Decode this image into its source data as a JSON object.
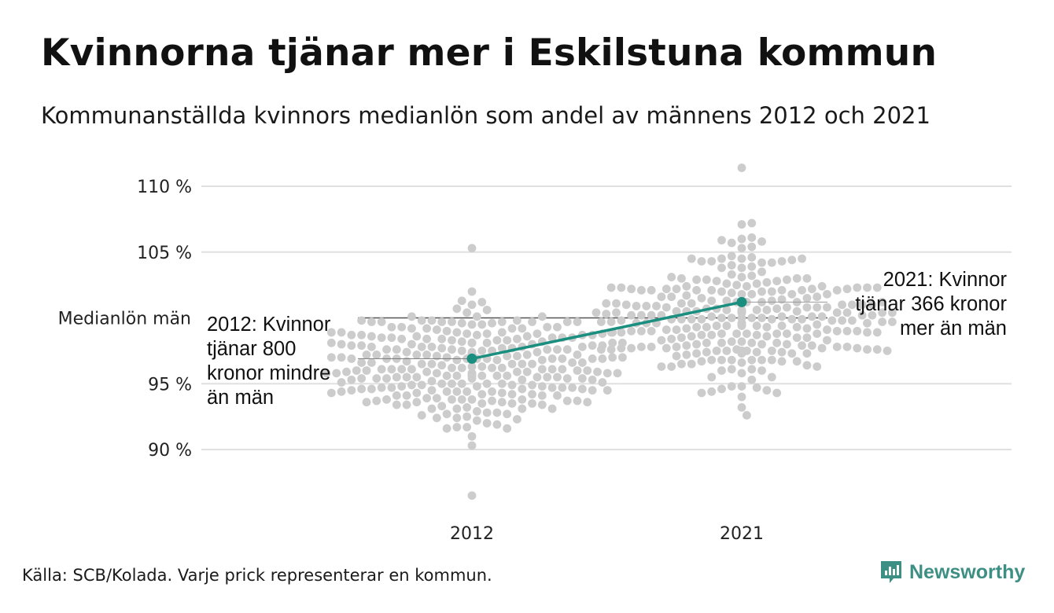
{
  "header": {
    "title": "Kvinnorna tjänar mer i Eskilstuna kommun",
    "subtitle": "Kommunanställda kvinnors medianlön som andel av männens 2012 och 2021"
  },
  "footer": {
    "source": "Källa: SCB/Kolada. Varje prick representerar en kommun.",
    "brand": "Newsworthy"
  },
  "colors": {
    "dots": "#cccccc",
    "highlight": "#1a8f7f",
    "grid": "#e0e0e0",
    "reference": "#555555",
    "brand": "#3d8f84"
  },
  "chart_data": {
    "type": "scatter",
    "categories": [
      "2012",
      "2021"
    ],
    "y_ticks": [
      90,
      95,
      105,
      110
    ],
    "y_tick_labels": [
      "90 %",
      "95 %",
      "105 %",
      "110 %"
    ],
    "ylim": [
      86,
      111.5
    ],
    "reference": {
      "label": "Medianlön män",
      "value": 100
    },
    "highlight": {
      "name": "Eskilstuna",
      "points": [
        {
          "x": "2012",
          "y": 96.9,
          "annotation": [
            "2012: Kvinnor",
            "tjänar 800",
            "kronor mindre",
            "än män"
          ]
        },
        {
          "x": "2021",
          "y": 101.2,
          "annotation": [
            "2021: Kvinnor",
            "tjänar 366 kronor",
            "mer än män"
          ]
        }
      ]
    },
    "distribution": [
      {
        "x": "2012",
        "median": 96.3,
        "sd": 2.3,
        "min": 86.5,
        "max": 105.3,
        "count": 290
      },
      {
        "x": "2021",
        "median": 100.0,
        "sd": 2.6,
        "min": 92.6,
        "max": 111.4,
        "count": 290
      }
    ],
    "grid": true
  }
}
